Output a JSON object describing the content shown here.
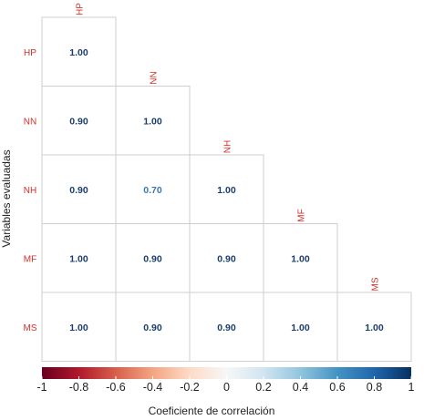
{
  "chart_data": {
    "type": "heatmap",
    "variant": "lower-triangular correlation matrix",
    "variables": [
      "HP",
      "NN",
      "NH",
      "MF",
      "MS"
    ],
    "matrix": [
      [
        1.0,
        null,
        null,
        null,
        null
      ],
      [
        0.9,
        1.0,
        null,
        null,
        null
      ],
      [
        0.9,
        0.7,
        1.0,
        null,
        null
      ],
      [
        1.0,
        0.9,
        0.9,
        1.0,
        null
      ],
      [
        1.0,
        0.9,
        0.9,
        1.0,
        1.0
      ]
    ],
    "value_labels": [
      [
        "1.00"
      ],
      [
        "0.90",
        "1.00"
      ],
      [
        "0.90",
        "0.70",
        "1.00"
      ],
      [
        "1.00",
        "0.90",
        "0.90",
        "1.00"
      ],
      [
        "1.00",
        "0.90",
        "0.90",
        "1.00",
        "1.00"
      ]
    ],
    "ylabel": "Variables evaluadas",
    "legend": {
      "title": "Coeficiente de correlación",
      "position": "bottom",
      "range": [
        -1,
        1
      ],
      "ticks": [
        "-1",
        "-0.8",
        "-0.6",
        "-0.4",
        "-0.2",
        "0",
        "0.2",
        "0.4",
        "0.6",
        "0.8",
        "1"
      ],
      "palette": [
        "#67001f",
        "#b2182b",
        "#d6604d",
        "#f4a582",
        "#fddbc7",
        "#f7f7f7",
        "#d1e5f0",
        "#92c5de",
        "#4393c3",
        "#2166ac",
        "#053061"
      ]
    },
    "grid": true,
    "colors": {
      "label": "#d0302a",
      "text_strong": "#1a3d6b",
      "text_mid": "#3a78b0",
      "cell_border": "#cfcfcf"
    }
  }
}
